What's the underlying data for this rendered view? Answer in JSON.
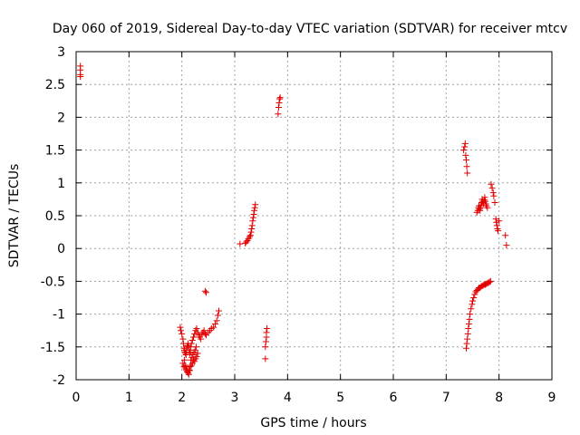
{
  "chart_data": {
    "type": "scatter",
    "title": "Day 060 of 2019, Sidereal Day-to-day VTEC variation (SDTVAR) for receiver mtcv",
    "xlabel": "GPS time / hours",
    "ylabel": "SDTVAR / TECUs",
    "xlim": [
      0,
      9
    ],
    "ylim": [
      -2,
      3
    ],
    "xticks": [
      "0",
      "1",
      "2",
      "3",
      "4",
      "5",
      "6",
      "7",
      "8",
      "9"
    ],
    "yticks": [
      "-2",
      "-1.5",
      "-1",
      "-0.5",
      "0",
      "0.5",
      "1",
      "1.5",
      "2",
      "2.5",
      "3"
    ],
    "xtick_values": [
      0,
      1,
      2,
      3,
      4,
      5,
      6,
      7,
      8,
      9
    ],
    "ytick_values": [
      -2,
      -1.5,
      -1,
      -0.5,
      0,
      0.5,
      1,
      1.5,
      2,
      2.5,
      3
    ],
    "grid": true,
    "marker": "plus",
    "color": "#e00000",
    "series": [
      {
        "name": "SDTVAR",
        "x": [
          0.08,
          0.08,
          0.08,
          0.08,
          1.97,
          1.98,
          2.0,
          2.02,
          2.03,
          2.04,
          2.05,
          2.06,
          2.07,
          2.08,
          2.09,
          2.1,
          2.11,
          2.12,
          2.13,
          2.14,
          2.15,
          2.16,
          2.17,
          2.18,
          2.2,
          2.22,
          2.24,
          2.26,
          2.28,
          2.3,
          2.32,
          2.34,
          2.36,
          2.38,
          2.4,
          2.42,
          2.44,
          2.46,
          2.5,
          2.53,
          2.56,
          2.6,
          2.63,
          2.66,
          2.68,
          2.7,
          2.02,
          2.04,
          2.06,
          2.08,
          2.1,
          2.12,
          2.14,
          2.16,
          2.18,
          2.2,
          2.22,
          2.24,
          2.26,
          2.28,
          2.3,
          2.05,
          2.07,
          2.09,
          2.11,
          2.13,
          2.15,
          2.17,
          2.19,
          2.21,
          2.23,
          2.25,
          2.27,
          2.44,
          2.46,
          3.1,
          3.2,
          3.22,
          3.24,
          3.26,
          3.28,
          3.3,
          3.31,
          3.32,
          3.33,
          3.34,
          3.35,
          3.36,
          3.37,
          3.38,
          3.39,
          3.58,
          3.58,
          3.59,
          3.6,
          3.6,
          3.61,
          3.82,
          3.83,
          3.84,
          3.85,
          3.86,
          7.33,
          7.35,
          7.36,
          7.37,
          7.38,
          7.39,
          7.4,
          7.38,
          7.39,
          7.4,
          7.41,
          7.42,
          7.43,
          7.44,
          7.45,
          7.47,
          7.49,
          7.5,
          7.52,
          7.54,
          7.56,
          7.58,
          7.6,
          7.62,
          7.64,
          7.66,
          7.68,
          7.7,
          7.72,
          7.74,
          7.76,
          7.78,
          7.8,
          7.82,
          7.84,
          7.58,
          7.6,
          7.61,
          7.62,
          7.63,
          7.64,
          7.65,
          7.66,
          7.67,
          7.68,
          7.69,
          7.7,
          7.71,
          7.72,
          7.73,
          7.74,
          7.75,
          7.76,
          7.78,
          7.85,
          7.87,
          7.89,
          7.9,
          7.92,
          7.94,
          7.95,
          7.96,
          7.97,
          7.98,
          8.0,
          8.12,
          8.14
        ],
        "y": [
          2.65,
          2.72,
          2.78,
          2.62,
          -1.2,
          -1.25,
          -1.3,
          -1.38,
          -1.45,
          -1.52,
          -1.55,
          -1.58,
          -1.6,
          -1.62,
          -1.55,
          -1.5,
          -1.48,
          -1.45,
          -1.5,
          -1.55,
          -1.6,
          -1.58,
          -1.5,
          -1.45,
          -1.4,
          -1.35,
          -1.3,
          -1.25,
          -1.22,
          -1.28,
          -1.32,
          -1.35,
          -1.38,
          -1.3,
          -1.28,
          -1.25,
          -1.3,
          -1.32,
          -1.28,
          -1.25,
          -1.22,
          -1.2,
          -1.15,
          -1.1,
          -1.02,
          -0.95,
          -1.75,
          -1.8,
          -1.82,
          -1.85,
          -1.88,
          -1.9,
          -1.85,
          -1.8,
          -1.78,
          -1.75,
          -1.7,
          -1.72,
          -1.68,
          -1.65,
          -1.6,
          -1.7,
          -1.78,
          -1.82,
          -1.88,
          -1.92,
          -1.86,
          -1.7,
          -1.66,
          -1.62,
          -1.58,
          -1.55,
          -1.5,
          -0.65,
          -0.67,
          0.07,
          0.08,
          0.1,
          0.12,
          0.15,
          0.18,
          0.2,
          0.25,
          0.3,
          0.35,
          0.42,
          0.47,
          0.52,
          0.58,
          0.62,
          0.67,
          -1.68,
          -1.5,
          -1.42,
          -1.35,
          -1.28,
          -1.22,
          2.05,
          2.15,
          2.22,
          2.28,
          2.3,
          1.5,
          1.55,
          1.6,
          1.42,
          1.35,
          1.25,
          1.15,
          -1.52,
          -1.45,
          -1.38,
          -1.3,
          -1.22,
          -1.15,
          -1.08,
          -1.0,
          -0.92,
          -0.85,
          -0.8,
          -0.75,
          -0.7,
          -0.66,
          -0.64,
          -0.62,
          -0.6,
          -0.6,
          -0.58,
          -0.57,
          -0.56,
          -0.55,
          -0.55,
          -0.54,
          -0.53,
          -0.52,
          -0.51,
          -0.5,
          0.55,
          0.58,
          0.62,
          0.65,
          0.6,
          0.58,
          0.62,
          0.66,
          0.7,
          0.75,
          0.72,
          0.68,
          0.7,
          0.74,
          0.78,
          0.72,
          0.68,
          0.65,
          0.62,
          0.98,
          0.92,
          0.85,
          0.8,
          0.7,
          0.45,
          0.4,
          0.35,
          0.3,
          0.27,
          0.42,
          0.2,
          0.05
        ]
      }
    ]
  }
}
